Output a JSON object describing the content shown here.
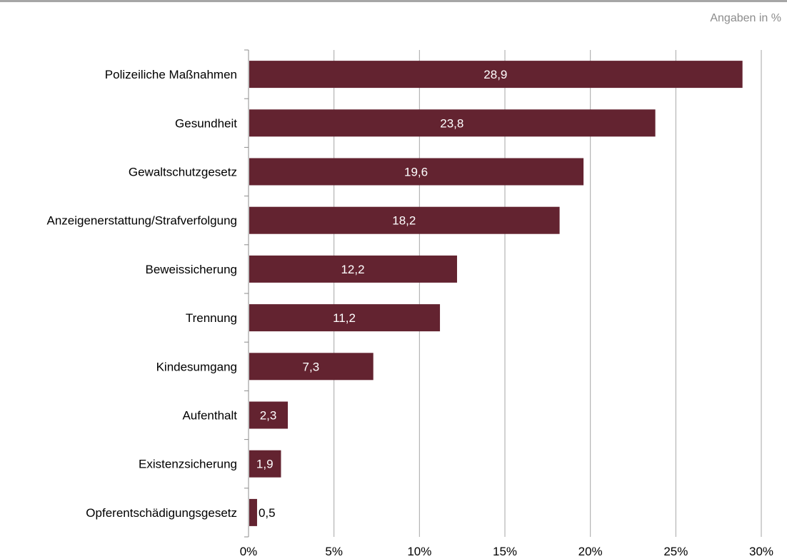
{
  "units_note": "Angaben in %",
  "colors": {
    "bar": "#632330",
    "grid": "#a6a6a6",
    "axis": "#8c8c8c",
    "label_inside": "#ffffff",
    "label_outside": "#000000"
  },
  "chart_data": {
    "type": "bar",
    "orientation": "horizontal",
    "title": "",
    "xlabel": "",
    "ylabel": "",
    "xlim": [
      0,
      30
    ],
    "xticks": [
      0,
      5,
      10,
      15,
      20,
      25,
      30
    ],
    "xtick_labels": [
      "0%",
      "5%",
      "10%",
      "15%",
      "20%",
      "25%",
      "30%"
    ],
    "grid": true,
    "legend": "none",
    "categories": [
      "Polizeiliche Maßnahmen",
      "Gesundheit",
      "Gewaltschutzgesetz",
      "Anzeigenerstattung/Strafverfolgung",
      "Beweissicherung",
      "Trennung ",
      "Kindesumgang",
      "Aufenthalt",
      "Existenzsicherung",
      "Opferentschädigungsgesetz"
    ],
    "values": [
      28.9,
      23.8,
      19.6,
      18.2,
      12.2,
      11.2,
      7.3,
      2.3,
      1.9,
      0.5
    ],
    "value_labels": [
      "28,9",
      "23,8",
      "19,6",
      "18,2",
      "12,2",
      "11,2",
      "7,3",
      "2,3",
      "1,9",
      "0,5"
    ]
  }
}
